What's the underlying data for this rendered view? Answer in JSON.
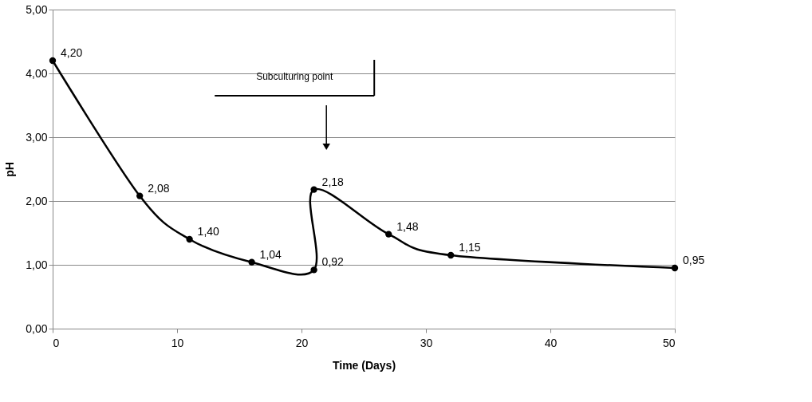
{
  "chart_data": {
    "type": "line",
    "xlabel": "Time (Days)",
    "ylabel": "pH",
    "x": [
      0,
      7,
      11,
      16,
      21,
      21,
      27,
      32,
      50
    ],
    "series": [
      {
        "color": "#000000",
        "values": [
          4.2,
          2.08,
          1.4,
          1.04,
          0.92,
          2.18,
          1.48,
          1.15,
          0.95
        ],
        "value_labels": [
          "4,20",
          "2,08",
          "1,40",
          "1,04",
          "0,92",
          "2,18",
          "1,48",
          "1,15",
          "0,95"
        ]
      }
    ],
    "xlim": [
      0,
      50
    ],
    "xticks": [
      0,
      10,
      20,
      30,
      40,
      50
    ],
    "ylim": [
      0,
      5
    ],
    "yticks": [
      {
        "value": 0,
        "label": "0,00"
      },
      {
        "value": 1,
        "label": "1,00"
      },
      {
        "value": 2,
        "label": "2,00"
      },
      {
        "value": 3,
        "label": "3,00"
      },
      {
        "value": 4,
        "label": "4,00"
      },
      {
        "value": 5,
        "label": "5,00"
      }
    ],
    "grid": "y",
    "marker": "circle",
    "line_style": "solid",
    "annotations": [
      "Subculturing point"
    ]
  }
}
